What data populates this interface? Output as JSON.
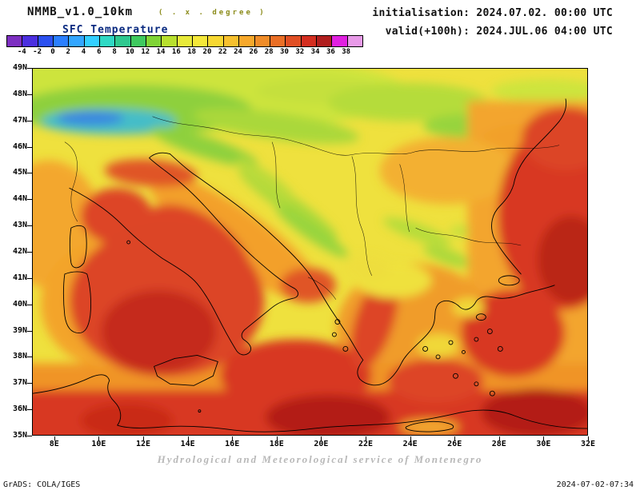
{
  "header": {
    "model": "NMMB_v1.0_10km",
    "model_note": "( . x . degree )",
    "variable": "SFC Temperature",
    "init_label": "initialisation: 2024.07.02. 00:00 UTC",
    "valid_label": "valid(+100h): 2024.JUL.06 04:00 UTC"
  },
  "colorbar": {
    "ticks": [
      "-4",
      "-2",
      "0",
      "2",
      "4",
      "6",
      "8",
      "10",
      "12",
      "14",
      "16",
      "18",
      "20",
      "22",
      "24",
      "26",
      "28",
      "30",
      "32",
      "34",
      "36",
      "38"
    ],
    "colors": [
      "#7d2fc1",
      "#4b2fe0",
      "#2b50f0",
      "#2b7fff",
      "#33a6ff",
      "#33cfff",
      "#2fd9c4",
      "#2fc98f",
      "#3fc95f",
      "#7fd435",
      "#b8e02e",
      "#e8ea3a",
      "#f5e83a",
      "#f7d832",
      "#f7c02e",
      "#f7a82b",
      "#f08c28",
      "#ea6f26",
      "#e04f24",
      "#d42e20",
      "#b01e1e",
      "#e020e0",
      "#e89ae8"
    ]
  },
  "map": {
    "lat_labels": [
      "49N",
      "48N",
      "47N",
      "46N",
      "45N",
      "44N",
      "43N",
      "42N",
      "41N",
      "40N",
      "39N",
      "38N",
      "37N",
      "36N",
      "35N"
    ],
    "lon_labels": [
      "8E",
      "10E",
      "12E",
      "14E",
      "16E",
      "18E",
      "20E",
      "22E",
      "24E",
      "26E",
      "28E",
      "30E",
      "32E"
    ]
  },
  "footer": {
    "service": "Hydrological and Meteorological service of Montenegro",
    "credit": "GrADS: COLA/IGES",
    "timestamp": "2024-07-02-07:34"
  }
}
